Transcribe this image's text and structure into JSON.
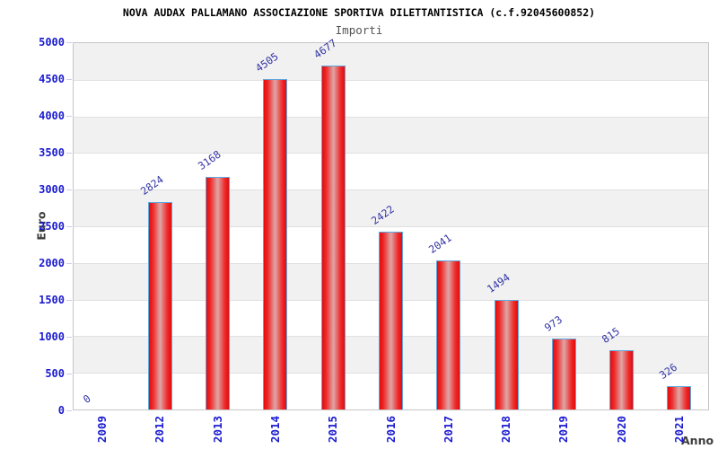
{
  "chart_data": {
    "type": "bar",
    "title": "NOVA AUDAX PALLAMANO ASSOCIAZIONE SPORTIVA DILETTANTISTICA (c.f.92045600852)",
    "subtitle": "Importi",
    "xlabel": "Anno",
    "ylabel": "Euro",
    "categories": [
      "2009",
      "2012",
      "2013",
      "2014",
      "2015",
      "2016",
      "2017",
      "2018",
      "2019",
      "2020",
      "2021"
    ],
    "values": [
      0,
      2824,
      3168,
      4505,
      4677,
      2422,
      2041,
      1494,
      973,
      815,
      326
    ],
    "ylim": [
      0,
      5000
    ],
    "ytick_step": 500,
    "yticks": [
      0,
      500,
      1000,
      1500,
      2000,
      2500,
      3000,
      3500,
      4000,
      4500,
      5000
    ],
    "grid": true,
    "band_fill": true,
    "legend": "none",
    "colors": {
      "title": "#000000",
      "subtitle": "#555555",
      "tick_text": "#1a1ad2",
      "value_label": "#3434a6",
      "axis_label": "#3c3c3c",
      "band": "#f1f1f1",
      "grid": "#e0e0e0",
      "plot_border": "#c6c6c6",
      "bar_edge": "#e60b0b",
      "bar_mid": "#ee2a2a",
      "bar_center": "#dfa6a6",
      "bar_border": "#5ea9e0",
      "tick_mark": "#ccccee"
    }
  }
}
